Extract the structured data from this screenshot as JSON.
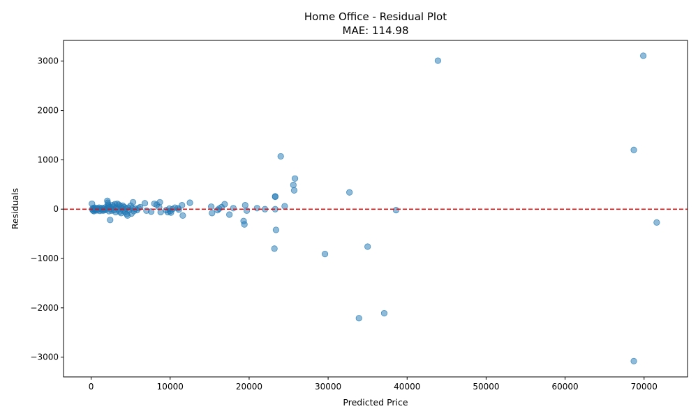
{
  "chart_data": {
    "type": "scatter",
    "title": "Home Office - Residual Plot",
    "subtitle": "MAE: 114.98",
    "xlabel": "Predicted Price",
    "ylabel": "Residuals",
    "xlim": [
      -3500,
      75500
    ],
    "ylim": [
      -3400,
      3420
    ],
    "xticks": [
      0,
      10000,
      20000,
      30000,
      40000,
      50000,
      60000,
      70000
    ],
    "xtick_labels": [
      "0",
      "10000",
      "20000",
      "30000",
      "40000",
      "50000",
      "60000",
      "70000"
    ],
    "yticks": [
      -3000,
      -2000,
      -1000,
      0,
      1000,
      2000,
      3000
    ],
    "ytick_labels": [
      "−3000",
      "−2000",
      "−1000",
      "0",
      "1000",
      "2000",
      "3000"
    ],
    "reference_line": {
      "y": 0,
      "color": "#ff0000",
      "style": "dashed"
    },
    "point_color": "#1f77b4",
    "grid": false,
    "points": [
      [
        100,
        110
      ],
      [
        150,
        -10
      ],
      [
        200,
        20
      ],
      [
        250,
        -30
      ],
      [
        300,
        10
      ],
      [
        350,
        -40
      ],
      [
        400,
        0
      ],
      [
        450,
        30
      ],
      [
        500,
        -20
      ],
      [
        600,
        15
      ],
      [
        700,
        -25
      ],
      [
        800,
        20
      ],
      [
        900,
        -10
      ],
      [
        1000,
        30
      ],
      [
        1100,
        -35
      ],
      [
        1200,
        10
      ],
      [
        1300,
        -15
      ],
      [
        1400,
        25
      ],
      [
        1500,
        -30
      ],
      [
        1600,
        5
      ],
      [
        1700,
        -20
      ],
      [
        1800,
        35
      ],
      [
        1900,
        -10
      ],
      [
        2000,
        20
      ],
      [
        2050,
        170
      ],
      [
        2100,
        130
      ],
      [
        2150,
        90
      ],
      [
        2200,
        60
      ],
      [
        2250,
        -40
      ],
      [
        2300,
        40
      ],
      [
        2400,
        -220
      ],
      [
        2500,
        10
      ],
      [
        2600,
        -30
      ],
      [
        2700,
        80
      ],
      [
        2800,
        50
      ],
      [
        2900,
        -20
      ],
      [
        3000,
        100
      ],
      [
        3100,
        -60
      ],
      [
        3200,
        30
      ],
      [
        3300,
        110
      ],
      [
        3400,
        -10
      ],
      [
        3500,
        90
      ],
      [
        3600,
        -50
      ],
      [
        3700,
        60
      ],
      [
        3800,
        -80
      ],
      [
        3900,
        20
      ],
      [
        4000,
        70
      ],
      [
        4100,
        -30
      ],
      [
        4200,
        40
      ],
      [
        4300,
        -60
      ],
      [
        4400,
        10
      ],
      [
        4500,
        -100
      ],
      [
        4600,
        -130
      ],
      [
        4700,
        30
      ],
      [
        4800,
        -20
      ],
      [
        5000,
        70
      ],
      [
        5100,
        -90
      ],
      [
        5200,
        20
      ],
      [
        5300,
        140
      ],
      [
        5400,
        -40
      ],
      [
        5600,
        10
      ],
      [
        5800,
        -20
      ],
      [
        6000,
        20
      ],
      [
        6200,
        40
      ],
      [
        6800,
        120
      ],
      [
        7000,
        -30
      ],
      [
        7600,
        -50
      ],
      [
        8000,
        110
      ],
      [
        8300,
        90
      ],
      [
        8600,
        40
      ],
      [
        8700,
        140
      ],
      [
        8800,
        -60
      ],
      [
        9500,
        -20
      ],
      [
        9700,
        -60
      ],
      [
        9900,
        10
      ],
      [
        10000,
        -40
      ],
      [
        10100,
        -70
      ],
      [
        10300,
        0
      ],
      [
        10600,
        30
      ],
      [
        11000,
        20
      ],
      [
        11100,
        -10
      ],
      [
        11500,
        80
      ],
      [
        11600,
        -130
      ],
      [
        12500,
        130
      ],
      [
        15200,
        50
      ],
      [
        15300,
        -80
      ],
      [
        16000,
        -20
      ],
      [
        16200,
        10
      ],
      [
        16500,
        40
      ],
      [
        16900,
        100
      ],
      [
        17500,
        -110
      ],
      [
        18000,
        20
      ],
      [
        19300,
        -240
      ],
      [
        19400,
        -310
      ],
      [
        19500,
        80
      ],
      [
        19700,
        -30
      ],
      [
        21000,
        20
      ],
      [
        22000,
        0
      ],
      [
        23200,
        -800
      ],
      [
        23300,
        260
      ],
      [
        23300,
        250
      ],
      [
        23300,
        0
      ],
      [
        23400,
        -420
      ],
      [
        24000,
        1070
      ],
      [
        24500,
        60
      ],
      [
        25600,
        490
      ],
      [
        25700,
        380
      ],
      [
        25800,
        620
      ],
      [
        29600,
        -910
      ],
      [
        32700,
        340
      ],
      [
        33900,
        -2210
      ],
      [
        35000,
        -760
      ],
      [
        37100,
        -2110
      ],
      [
        38600,
        -20
      ],
      [
        43900,
        3010
      ],
      [
        68700,
        1200
      ],
      [
        68700,
        -3080
      ],
      [
        69900,
        3110
      ],
      [
        71600,
        -270
      ]
    ]
  }
}
